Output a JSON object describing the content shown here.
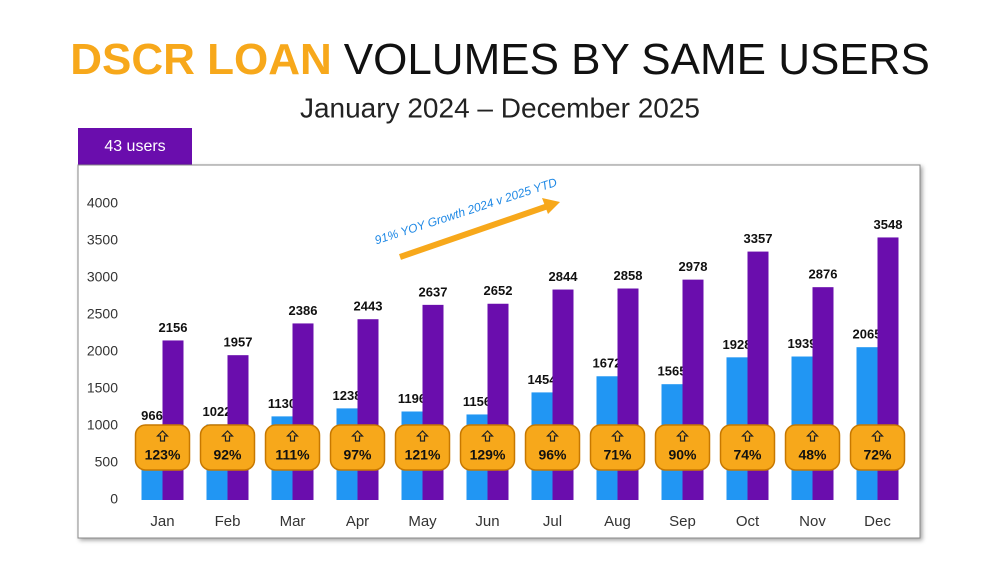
{
  "chart_data": {
    "type": "bar",
    "title_parts": [
      "DSCR LOAN",
      "VOLUMES BY SAME USERS"
    ],
    "subtitle": "January 2024 – December 2025",
    "badge": "43 users",
    "annotation": "91% YOY Growth 2024 v 2025 YTD",
    "categories": [
      "Jan",
      "Feb",
      "Mar",
      "Apr",
      "May",
      "Jun",
      "Jul",
      "Aug",
      "Sep",
      "Oct",
      "Nov",
      "Dec"
    ],
    "series": [
      {
        "color": "#2196f3",
        "values": [
          966,
          1022,
          1130,
          1238,
          1196,
          1156,
          1454,
          1672,
          1565,
          1928,
          1939,
          2065
        ]
      },
      {
        "color": "#6a0dad",
        "values": [
          2156,
          1957,
          2386,
          2443,
          2637,
          2652,
          2844,
          2858,
          2978,
          3357,
          2876,
          3548
        ]
      }
    ],
    "growth": {
      "color": "#f7a81b",
      "values": [
        123,
        92,
        111,
        97,
        121,
        129,
        96,
        71,
        90,
        74,
        48,
        72
      ],
      "value_labels": [
        "123%",
        "92%",
        "111%",
        "97%",
        "121%",
        "129%",
        "96%",
        "71%",
        "90%",
        "74%",
        "48%",
        "72%"
      ]
    },
    "ylim": [
      0,
      4000
    ],
    "yticks": [
      0,
      500,
      1000,
      1500,
      2000,
      2500,
      3000,
      3500,
      4000
    ],
    "grid": false
  }
}
